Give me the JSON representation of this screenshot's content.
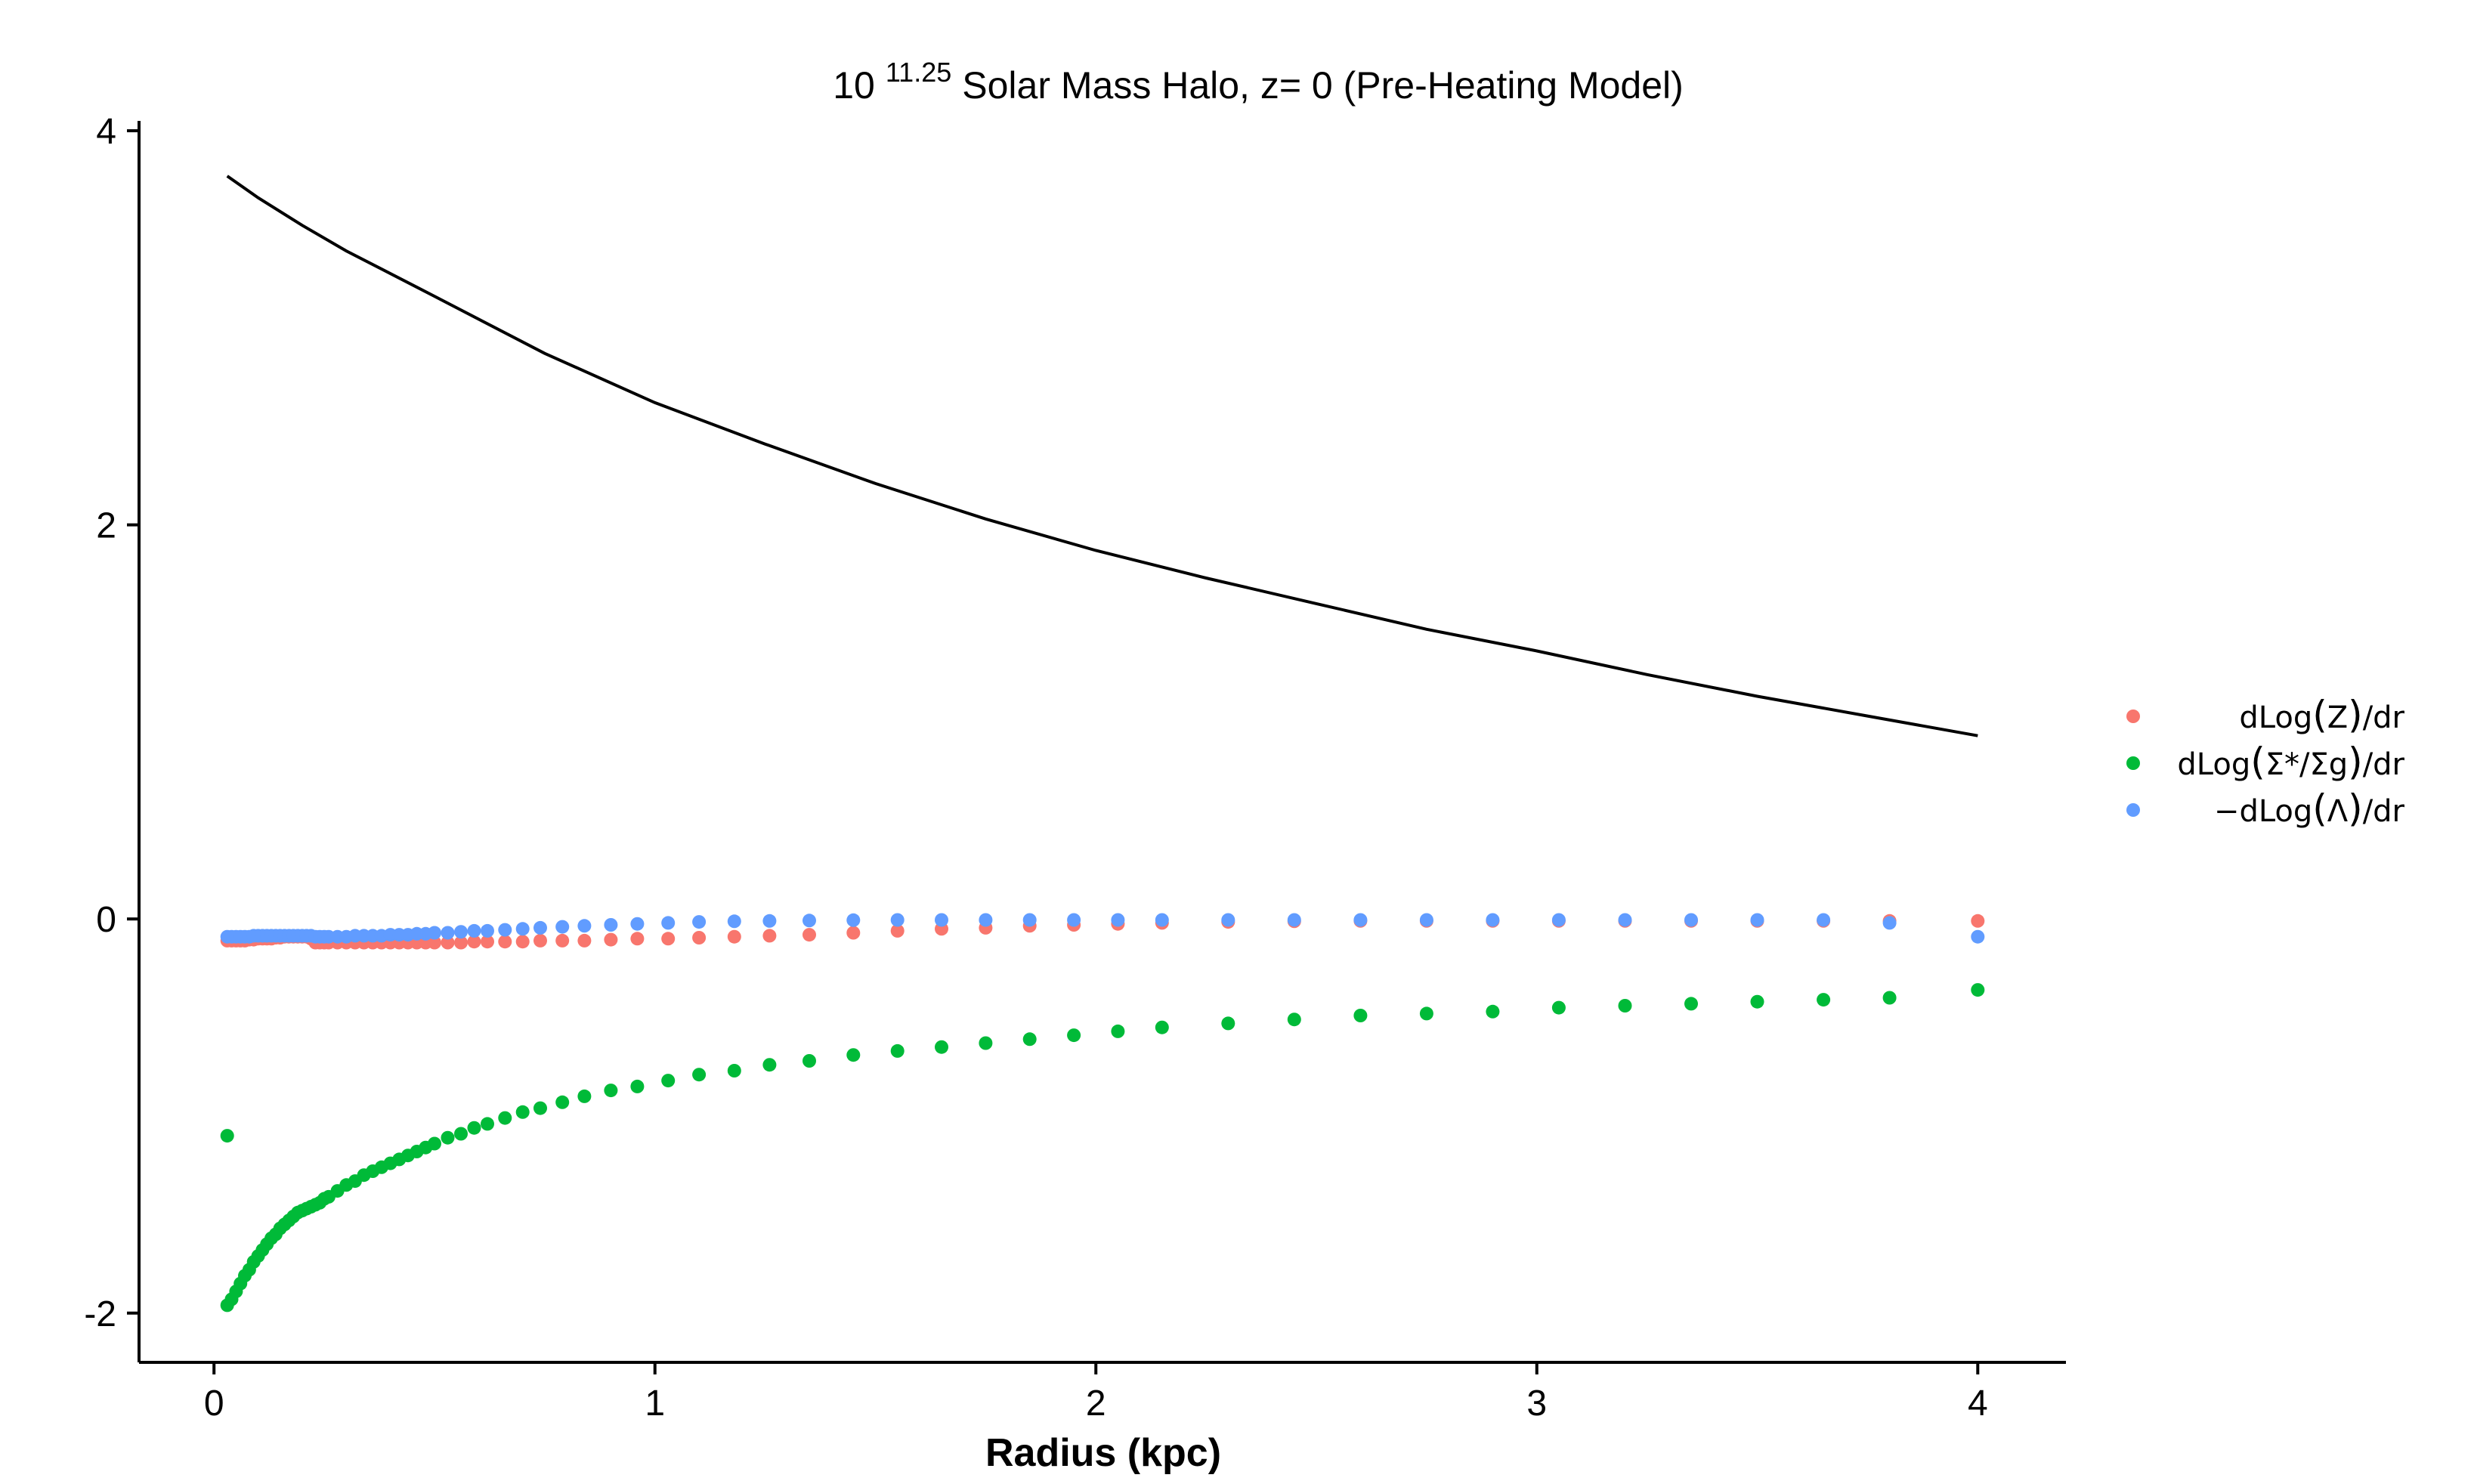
{
  "chart_data": {
    "type": "scatter",
    "title_base": "10",
    "title_exponent": "11.25",
    "title_rest": "Solar Mass Halo, z= 0 (Pre-Heating Model)",
    "xlabel": "Radius (kpc)",
    "ylabel": "",
    "xlim": [
      -0.17,
      4.2
    ],
    "ylim": [
      -2.25,
      4.05
    ],
    "x_ticks": [
      0,
      1,
      2,
      3,
      4
    ],
    "y_ticks": [
      -2,
      0,
      2,
      4
    ],
    "x_tick_labels": [
      "0",
      "1",
      "2",
      "3",
      "4"
    ],
    "y_tick_labels": [
      "-2",
      "0",
      "2",
      "4"
    ],
    "grid": false,
    "legend_position": "right",
    "line": {
      "color": "#000000",
      "x": [
        0.03,
        0.1,
        0.2,
        0.3,
        0.5,
        0.75,
        1.0,
        1.25,
        1.5,
        1.75,
        2.0,
        2.25,
        2.5,
        2.75,
        3.0,
        3.25,
        3.5,
        3.75,
        4.0
      ],
      "y": [
        3.77,
        3.66,
        3.52,
        3.39,
        3.16,
        2.87,
        2.62,
        2.41,
        2.21,
        2.03,
        1.87,
        1.73,
        1.6,
        1.47,
        1.36,
        1.24,
        1.13,
        1.03,
        0.93
      ]
    },
    "series": [
      {
        "name": "dLog(Z)/dr",
        "legend_parts": [
          "dLog",
          "(",
          "Z",
          ")",
          "/dr"
        ],
        "color": "#F8766D",
        "x": [
          0.03,
          0.04,
          0.05,
          0.06,
          0.07,
          0.08,
          0.09,
          0.1,
          0.11,
          0.12,
          0.13,
          0.14,
          0.15,
          0.16,
          0.17,
          0.18,
          0.19,
          0.2,
          0.21,
          0.22,
          0.23,
          0.24,
          0.25,
          0.26,
          0.28,
          0.3,
          0.32,
          0.34,
          0.36,
          0.38,
          0.4,
          0.42,
          0.44,
          0.46,
          0.48,
          0.5,
          0.53,
          0.56,
          0.59,
          0.62,
          0.66,
          0.7,
          0.74,
          0.79,
          0.84,
          0.9,
          0.96,
          1.03,
          1.1,
          1.18,
          1.26,
          1.35,
          1.45,
          1.55,
          1.65,
          1.75,
          1.85,
          1.95,
          2.05,
          2.15,
          2.3,
          2.45,
          2.6,
          2.75,
          2.9,
          3.05,
          3.2,
          3.35,
          3.5,
          3.65,
          3.8,
          4.0
        ],
        "y": [
          -0.11,
          -0.11,
          -0.11,
          -0.11,
          -0.11,
          -0.105,
          -0.105,
          -0.1,
          -0.1,
          -0.1,
          -0.1,
          -0.095,
          -0.095,
          -0.09,
          -0.09,
          -0.09,
          -0.09,
          -0.09,
          -0.09,
          -0.1,
          -0.12,
          -0.12,
          -0.12,
          -0.12,
          -0.12,
          -0.12,
          -0.12,
          -0.12,
          -0.12,
          -0.12,
          -0.12,
          -0.12,
          -0.12,
          -0.12,
          -0.12,
          -0.12,
          -0.12,
          -0.12,
          -0.115,
          -0.115,
          -0.115,
          -0.115,
          -0.11,
          -0.11,
          -0.11,
          -0.105,
          -0.1,
          -0.1,
          -0.095,
          -0.09,
          -0.085,
          -0.08,
          -0.07,
          -0.06,
          -0.05,
          -0.045,
          -0.035,
          -0.03,
          -0.025,
          -0.02,
          -0.015,
          -0.012,
          -0.01,
          -0.01,
          -0.01,
          -0.01,
          -0.01,
          -0.01,
          -0.01,
          -0.01,
          -0.01,
          -0.01
        ]
      },
      {
        "name": "dLog(Σ*/Σg)/dr",
        "legend_parts": [
          "dLog",
          "(",
          "Σ*/Σg",
          ")",
          "/dr"
        ],
        "color": "#00BA38",
        "x": [
          0.03,
          0.03,
          0.04,
          0.05,
          0.06,
          0.07,
          0.08,
          0.09,
          0.1,
          0.11,
          0.12,
          0.13,
          0.14,
          0.15,
          0.16,
          0.17,
          0.18,
          0.19,
          0.2,
          0.21,
          0.22,
          0.23,
          0.24,
          0.25,
          0.26,
          0.28,
          0.3,
          0.32,
          0.34,
          0.36,
          0.38,
          0.4,
          0.42,
          0.44,
          0.46,
          0.48,
          0.5,
          0.53,
          0.56,
          0.59,
          0.62,
          0.66,
          0.7,
          0.74,
          0.79,
          0.84,
          0.9,
          0.96,
          1.03,
          1.1,
          1.18,
          1.26,
          1.35,
          1.45,
          1.55,
          1.65,
          1.75,
          1.85,
          1.95,
          2.05,
          2.15,
          2.3,
          2.45,
          2.6,
          2.75,
          2.9,
          3.05,
          3.2,
          3.35,
          3.5,
          3.65,
          3.8,
          4.0
        ],
        "y": [
          -1.1,
          -1.96,
          -1.93,
          -1.89,
          -1.85,
          -1.81,
          -1.78,
          -1.74,
          -1.71,
          -1.68,
          -1.65,
          -1.62,
          -1.6,
          -1.57,
          -1.55,
          -1.53,
          -1.51,
          -1.49,
          -1.48,
          -1.47,
          -1.46,
          -1.45,
          -1.44,
          -1.42,
          -1.41,
          -1.38,
          -1.35,
          -1.33,
          -1.3,
          -1.28,
          -1.26,
          -1.24,
          -1.22,
          -1.2,
          -1.18,
          -1.16,
          -1.14,
          -1.11,
          -1.09,
          -1.06,
          -1.04,
          -1.01,
          -0.98,
          -0.96,
          -0.93,
          -0.9,
          -0.87,
          -0.85,
          -0.82,
          -0.79,
          -0.77,
          -0.74,
          -0.72,
          -0.69,
          -0.67,
          -0.65,
          -0.63,
          -0.61,
          -0.59,
          -0.57,
          -0.55,
          -0.53,
          -0.51,
          -0.49,
          -0.48,
          -0.47,
          -0.45,
          -0.44,
          -0.43,
          -0.42,
          -0.41,
          -0.4,
          -0.36
        ]
      },
      {
        "name": "−dLog(Λ)/dr",
        "legend_parts": [
          "−dLog",
          "(",
          "Λ",
          ")",
          "/dr"
        ],
        "color": "#619CFF",
        "x": [
          0.03,
          0.04,
          0.05,
          0.06,
          0.07,
          0.08,
          0.09,
          0.1,
          0.11,
          0.12,
          0.13,
          0.14,
          0.15,
          0.16,
          0.17,
          0.18,
          0.19,
          0.2,
          0.21,
          0.22,
          0.23,
          0.24,
          0.25,
          0.26,
          0.28,
          0.3,
          0.32,
          0.34,
          0.36,
          0.38,
          0.4,
          0.42,
          0.44,
          0.46,
          0.48,
          0.5,
          0.53,
          0.56,
          0.59,
          0.62,
          0.66,
          0.7,
          0.74,
          0.79,
          0.84,
          0.9,
          0.96,
          1.03,
          1.1,
          1.18,
          1.26,
          1.35,
          1.45,
          1.55,
          1.65,
          1.75,
          1.85,
          1.95,
          2.05,
          2.15,
          2.3,
          2.45,
          2.6,
          2.75,
          2.9,
          3.05,
          3.2,
          3.35,
          3.5,
          3.65,
          3.8,
          4.0
        ],
        "y": [
          -0.09,
          -0.09,
          -0.09,
          -0.09,
          -0.09,
          -0.09,
          -0.085,
          -0.085,
          -0.085,
          -0.085,
          -0.085,
          -0.085,
          -0.085,
          -0.085,
          -0.085,
          -0.085,
          -0.085,
          -0.085,
          -0.085,
          -0.085,
          -0.09,
          -0.09,
          -0.09,
          -0.09,
          -0.09,
          -0.09,
          -0.085,
          -0.085,
          -0.085,
          -0.085,
          -0.08,
          -0.08,
          -0.08,
          -0.075,
          -0.075,
          -0.07,
          -0.07,
          -0.065,
          -0.06,
          -0.06,
          -0.055,
          -0.05,
          -0.045,
          -0.04,
          -0.035,
          -0.03,
          -0.025,
          -0.02,
          -0.015,
          -0.012,
          -0.01,
          -0.008,
          -0.006,
          -0.005,
          -0.005,
          -0.005,
          -0.005,
          -0.005,
          -0.005,
          -0.005,
          -0.005,
          -0.005,
          -0.005,
          -0.005,
          -0.005,
          -0.005,
          -0.005,
          -0.005,
          -0.005,
          -0.005,
          -0.02,
          -0.09
        ]
      }
    ]
  }
}
